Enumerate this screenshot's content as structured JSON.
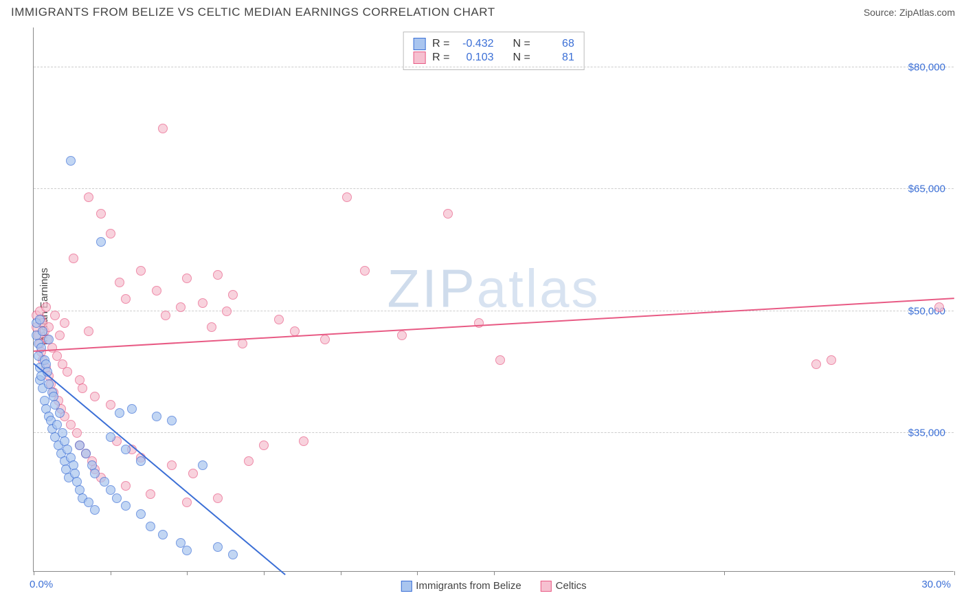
{
  "header": {
    "title": "IMMIGRANTS FROM BELIZE VS CELTIC MEDIAN EARNINGS CORRELATION CHART",
    "source_label": "Source: ",
    "source_value": "ZipAtlas.com"
  },
  "watermark": {
    "part1": "ZIP",
    "part2": "atlas"
  },
  "chart": {
    "type": "scatter",
    "ylabel": "Median Earnings",
    "xlim": [
      0,
      30
    ],
    "ylim": [
      18000,
      85000
    ],
    "x_tick_positions": [
      0,
      2.5,
      5,
      7.5,
      10,
      12.5,
      15,
      22.5,
      30
    ],
    "x_axis_min_label": "0.0%",
    "x_axis_max_label": "30.0%",
    "y_gridlines": [
      35000,
      50000,
      65000,
      80000
    ],
    "y_tick_labels": [
      "$35,000",
      "$50,000",
      "$65,000",
      "$80,000"
    ],
    "grid_color": "#cccccc",
    "axis_color": "#888888",
    "tick_label_color": "#3b6fd6",
    "background_color": "#ffffff",
    "point_radius": 7,
    "point_stroke_width": 1.5,
    "point_fill_opacity": 0.35
  },
  "series": [
    {
      "name": "Immigrants from Belize",
      "color_stroke": "#3b6fd6",
      "color_fill": "#a9c5ef",
      "R_label": "R =",
      "R_value": "-0.432",
      "N_label": "N =",
      "N_value": "68",
      "trend": {
        "x1": 0,
        "y1": 43500,
        "x2": 8.2,
        "y2": 17500
      },
      "points": [
        [
          0.1,
          48500
        ],
        [
          0.1,
          47000
        ],
        [
          0.15,
          46000
        ],
        [
          0.15,
          44500
        ],
        [
          0.2,
          43000
        ],
        [
          0.2,
          49000
        ],
        [
          0.2,
          41500
        ],
        [
          0.25,
          45500
        ],
        [
          0.25,
          42000
        ],
        [
          0.3,
          40500
        ],
        [
          0.3,
          47500
        ],
        [
          0.35,
          39000
        ],
        [
          0.35,
          44000
        ],
        [
          0.4,
          43500
        ],
        [
          0.4,
          38000
        ],
        [
          0.45,
          42500
        ],
        [
          0.5,
          37000
        ],
        [
          0.5,
          41000
        ],
        [
          0.5,
          46500
        ],
        [
          0.55,
          36500
        ],
        [
          0.6,
          40000
        ],
        [
          0.6,
          35500
        ],
        [
          0.65,
          39500
        ],
        [
          0.7,
          34500
        ],
        [
          0.7,
          38500
        ],
        [
          0.75,
          36000
        ],
        [
          0.8,
          33500
        ],
        [
          0.85,
          37500
        ],
        [
          0.9,
          32500
        ],
        [
          0.95,
          35000
        ],
        [
          1.0,
          31500
        ],
        [
          1.0,
          34000
        ],
        [
          1.05,
          30500
        ],
        [
          1.1,
          33000
        ],
        [
          1.15,
          29500
        ],
        [
          1.2,
          32000
        ],
        [
          1.2,
          68500
        ],
        [
          1.3,
          31000
        ],
        [
          1.35,
          30000
        ],
        [
          1.4,
          29000
        ],
        [
          1.5,
          28000
        ],
        [
          1.5,
          33500
        ],
        [
          1.6,
          27000
        ],
        [
          1.7,
          32500
        ],
        [
          1.8,
          26500
        ],
        [
          1.9,
          31000
        ],
        [
          2.0,
          30000
        ],
        [
          2.0,
          25500
        ],
        [
          2.2,
          58500
        ],
        [
          2.3,
          29000
        ],
        [
          2.5,
          28000
        ],
        [
          2.5,
          34500
        ],
        [
          2.7,
          27000
        ],
        [
          2.8,
          37500
        ],
        [
          3.0,
          33000
        ],
        [
          3.0,
          26000
        ],
        [
          3.2,
          38000
        ],
        [
          3.5,
          25000
        ],
        [
          3.5,
          31500
        ],
        [
          3.8,
          23500
        ],
        [
          4.0,
          37000
        ],
        [
          4.2,
          22500
        ],
        [
          4.5,
          36500
        ],
        [
          4.8,
          21500
        ],
        [
          5.0,
          20500
        ],
        [
          5.5,
          31000
        ],
        [
          6.0,
          21000
        ],
        [
          6.5,
          20000
        ]
      ]
    },
    {
      "name": "Celtics",
      "color_stroke": "#e85a84",
      "color_fill": "#f6c0d0",
      "R_label": "R =",
      "R_value": "0.103",
      "N_label": "N =",
      "N_value": "81",
      "trend": {
        "x1": 0,
        "y1": 45000,
        "x2": 30,
        "y2": 51500
      },
      "points": [
        [
          0.1,
          49500
        ],
        [
          0.1,
          48000
        ],
        [
          0.15,
          47000
        ],
        [
          0.2,
          50000
        ],
        [
          0.2,
          46000
        ],
        [
          0.25,
          49000
        ],
        [
          0.25,
          45000
        ],
        [
          0.3,
          48500
        ],
        [
          0.3,
          44000
        ],
        [
          0.35,
          47500
        ],
        [
          0.4,
          43000
        ],
        [
          0.4,
          50500
        ],
        [
          0.45,
          46500
        ],
        [
          0.5,
          42000
        ],
        [
          0.5,
          48000
        ],
        [
          0.55,
          41000
        ],
        [
          0.6,
          45500
        ],
        [
          0.65,
          40000
        ],
        [
          0.7,
          49500
        ],
        [
          0.75,
          44500
        ],
        [
          0.8,
          39000
        ],
        [
          0.85,
          47000
        ],
        [
          0.9,
          38000
        ],
        [
          0.95,
          43500
        ],
        [
          1.0,
          48500
        ],
        [
          1.0,
          37000
        ],
        [
          1.1,
          42500
        ],
        [
          1.2,
          36000
        ],
        [
          1.3,
          56500
        ],
        [
          1.4,
          35000
        ],
        [
          1.5,
          41500
        ],
        [
          1.5,
          33500
        ],
        [
          1.6,
          40500
        ],
        [
          1.7,
          32500
        ],
        [
          1.8,
          47500
        ],
        [
          1.8,
          64000
        ],
        [
          1.9,
          31500
        ],
        [
          2.0,
          39500
        ],
        [
          2.0,
          30500
        ],
        [
          2.2,
          62000
        ],
        [
          2.2,
          29500
        ],
        [
          2.5,
          38500
        ],
        [
          2.5,
          59500
        ],
        [
          2.7,
          34000
        ],
        [
          2.8,
          53500
        ],
        [
          3.0,
          28500
        ],
        [
          3.0,
          51500
        ],
        [
          3.2,
          33000
        ],
        [
          3.5,
          32000
        ],
        [
          3.5,
          55000
        ],
        [
          3.8,
          27500
        ],
        [
          4.0,
          52500
        ],
        [
          4.2,
          72500
        ],
        [
          4.3,
          49500
        ],
        [
          4.5,
          31000
        ],
        [
          4.8,
          50500
        ],
        [
          5.0,
          26500
        ],
        [
          5.0,
          54000
        ],
        [
          5.2,
          30000
        ],
        [
          5.5,
          51000
        ],
        [
          5.8,
          48000
        ],
        [
          6.0,
          27000
        ],
        [
          6.0,
          54500
        ],
        [
          6.3,
          50000
        ],
        [
          6.5,
          52000
        ],
        [
          6.8,
          46000
        ],
        [
          7.0,
          31500
        ],
        [
          7.5,
          33500
        ],
        [
          8.0,
          49000
        ],
        [
          8.5,
          47500
        ],
        [
          8.8,
          34000
        ],
        [
          9.5,
          46500
        ],
        [
          10.2,
          64000
        ],
        [
          10.8,
          55000
        ],
        [
          12.0,
          47000
        ],
        [
          13.5,
          62000
        ],
        [
          14.5,
          48500
        ],
        [
          15.2,
          44000
        ],
        [
          25.5,
          43500
        ],
        [
          26.0,
          44000
        ],
        [
          29.5,
          50500
        ]
      ]
    }
  ],
  "bottom_legend": {
    "item1": "Immigrants from Belize",
    "item2": "Celtics"
  }
}
